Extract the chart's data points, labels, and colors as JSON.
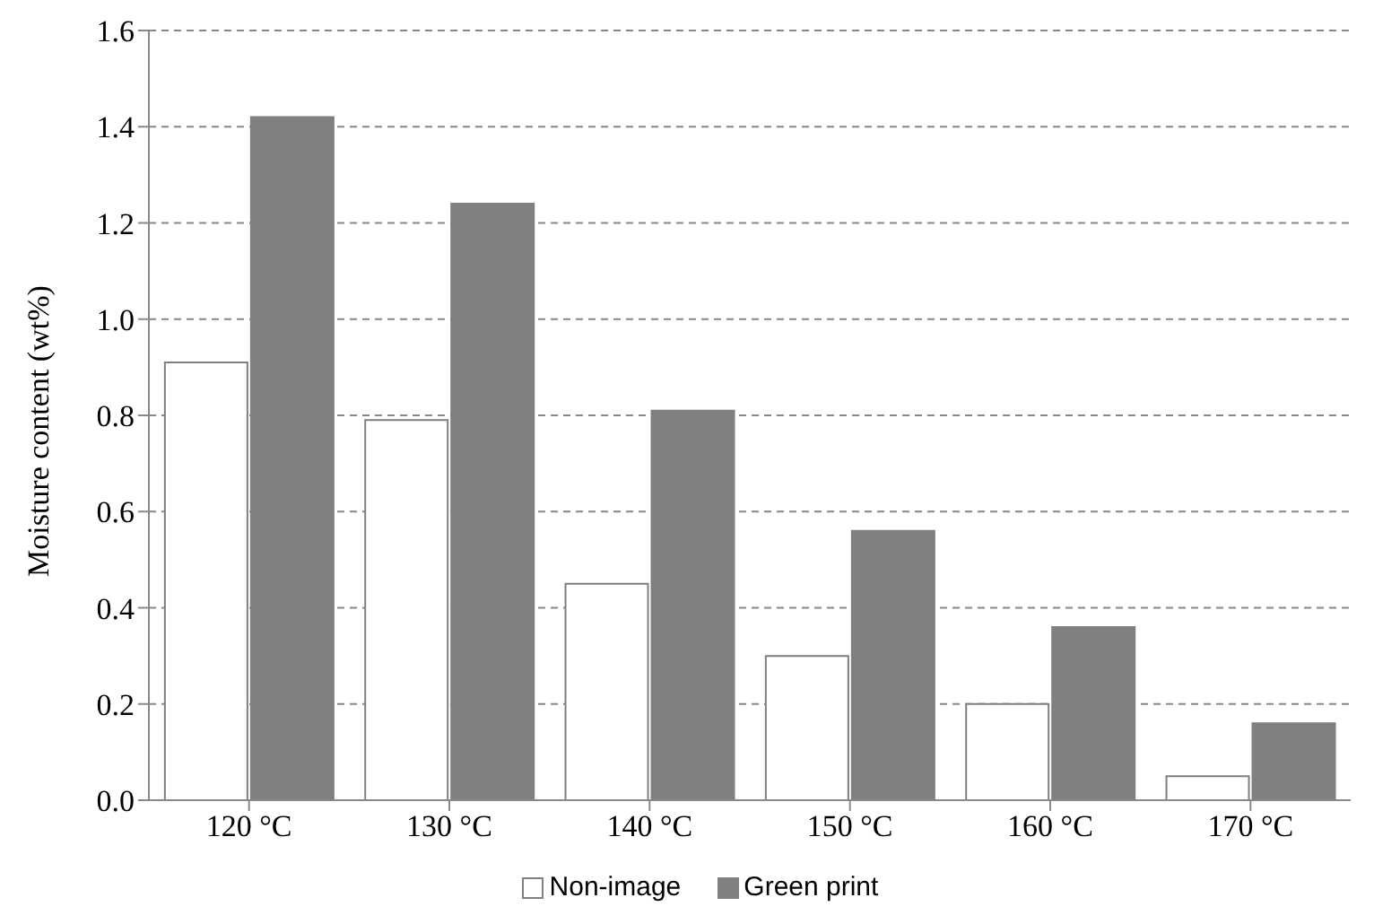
{
  "chart_data": {
    "type": "bar",
    "ylabel": "Moisture content (wt%)",
    "categories": [
      "120 °C",
      "130 °C",
      "140 °C",
      "150 °C",
      "160 °C",
      "170 °C"
    ],
    "series": [
      {
        "name": "Non-image",
        "color": "#ffffff",
        "values": [
          0.91,
          0.79,
          0.45,
          0.3,
          0.2,
          0.05
        ]
      },
      {
        "name": "Green print",
        "color": "#808080",
        "values": [
          1.42,
          1.24,
          0.81,
          0.56,
          0.36,
          0.16
        ]
      }
    ],
    "ylim": [
      0,
      1.6
    ],
    "yticks": [
      {
        "value": 0,
        "label": "0.0"
      },
      0.2,
      0.4,
      0.6,
      0.8,
      {
        "value": 1,
        "label": "1.0"
      },
      1.2,
      1.4,
      1.6
    ],
    "grid": "y",
    "legend": "bottom"
  }
}
